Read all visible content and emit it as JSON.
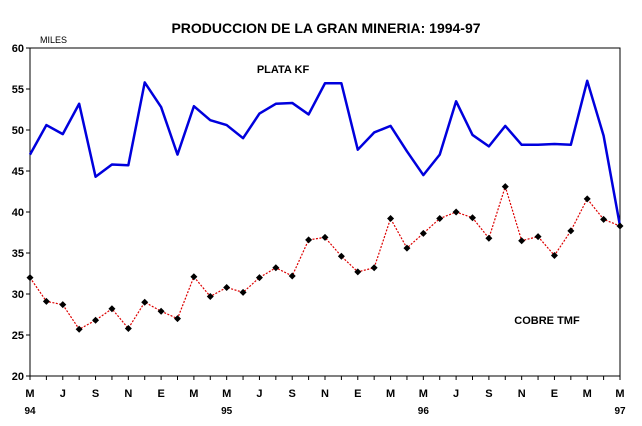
{
  "chart_data": {
    "type": "line",
    "title": "PRODUCCION DE LA GRAN MINERIA: 1994-97",
    "unit_label": "MILES",
    "ylim": [
      20,
      60
    ],
    "yticks": [
      "20",
      "25",
      "30",
      "35",
      "40",
      "45",
      "50",
      "55",
      "60"
    ],
    "x_tick_labels": [
      "M",
      "J",
      "S",
      "N",
      "E",
      "M",
      "M",
      "J",
      "S",
      "N",
      "E",
      "M",
      "M",
      "J",
      "S",
      "N",
      "E",
      "M",
      "M"
    ],
    "year_labels": [
      {
        "label": "94",
        "month_index": 0
      },
      {
        "label": "95",
        "month_index": 12
      },
      {
        "label": "96",
        "month_index": 24
      },
      {
        "label": "97",
        "month_index": 36
      }
    ],
    "grid": false,
    "series": [
      {
        "name": "PLATA KF",
        "color": "#0000dd",
        "values": [
          47.0,
          50.6,
          49.5,
          53.2,
          44.3,
          45.8,
          45.7,
          55.8,
          52.8,
          47.0,
          52.9,
          51.2,
          50.6,
          49.0,
          52.0,
          53.2,
          53.3,
          51.9,
          55.7,
          55.7,
          47.6,
          49.7,
          50.5,
          47.4,
          44.5,
          47.0,
          53.5,
          49.4,
          48.0,
          50.5,
          48.2,
          48.2,
          48.3,
          48.2,
          56.0,
          49.3,
          38.3
        ]
      },
      {
        "name": "COBRE TMF",
        "color": "#dd0000",
        "values": [
          32.0,
          29.1,
          28.7,
          25.7,
          26.8,
          28.2,
          25.8,
          29.0,
          27.9,
          27.0,
          32.1,
          29.7,
          30.8,
          30.2,
          32.0,
          33.2,
          32.2,
          36.6,
          36.9,
          34.6,
          32.7,
          33.2,
          39.2,
          35.6,
          37.4,
          39.2,
          40.0,
          39.3,
          36.8,
          43.1,
          36.5,
          37.0,
          34.7,
          37.7,
          41.6,
          39.1,
          38.3
        ]
      }
    ]
  }
}
